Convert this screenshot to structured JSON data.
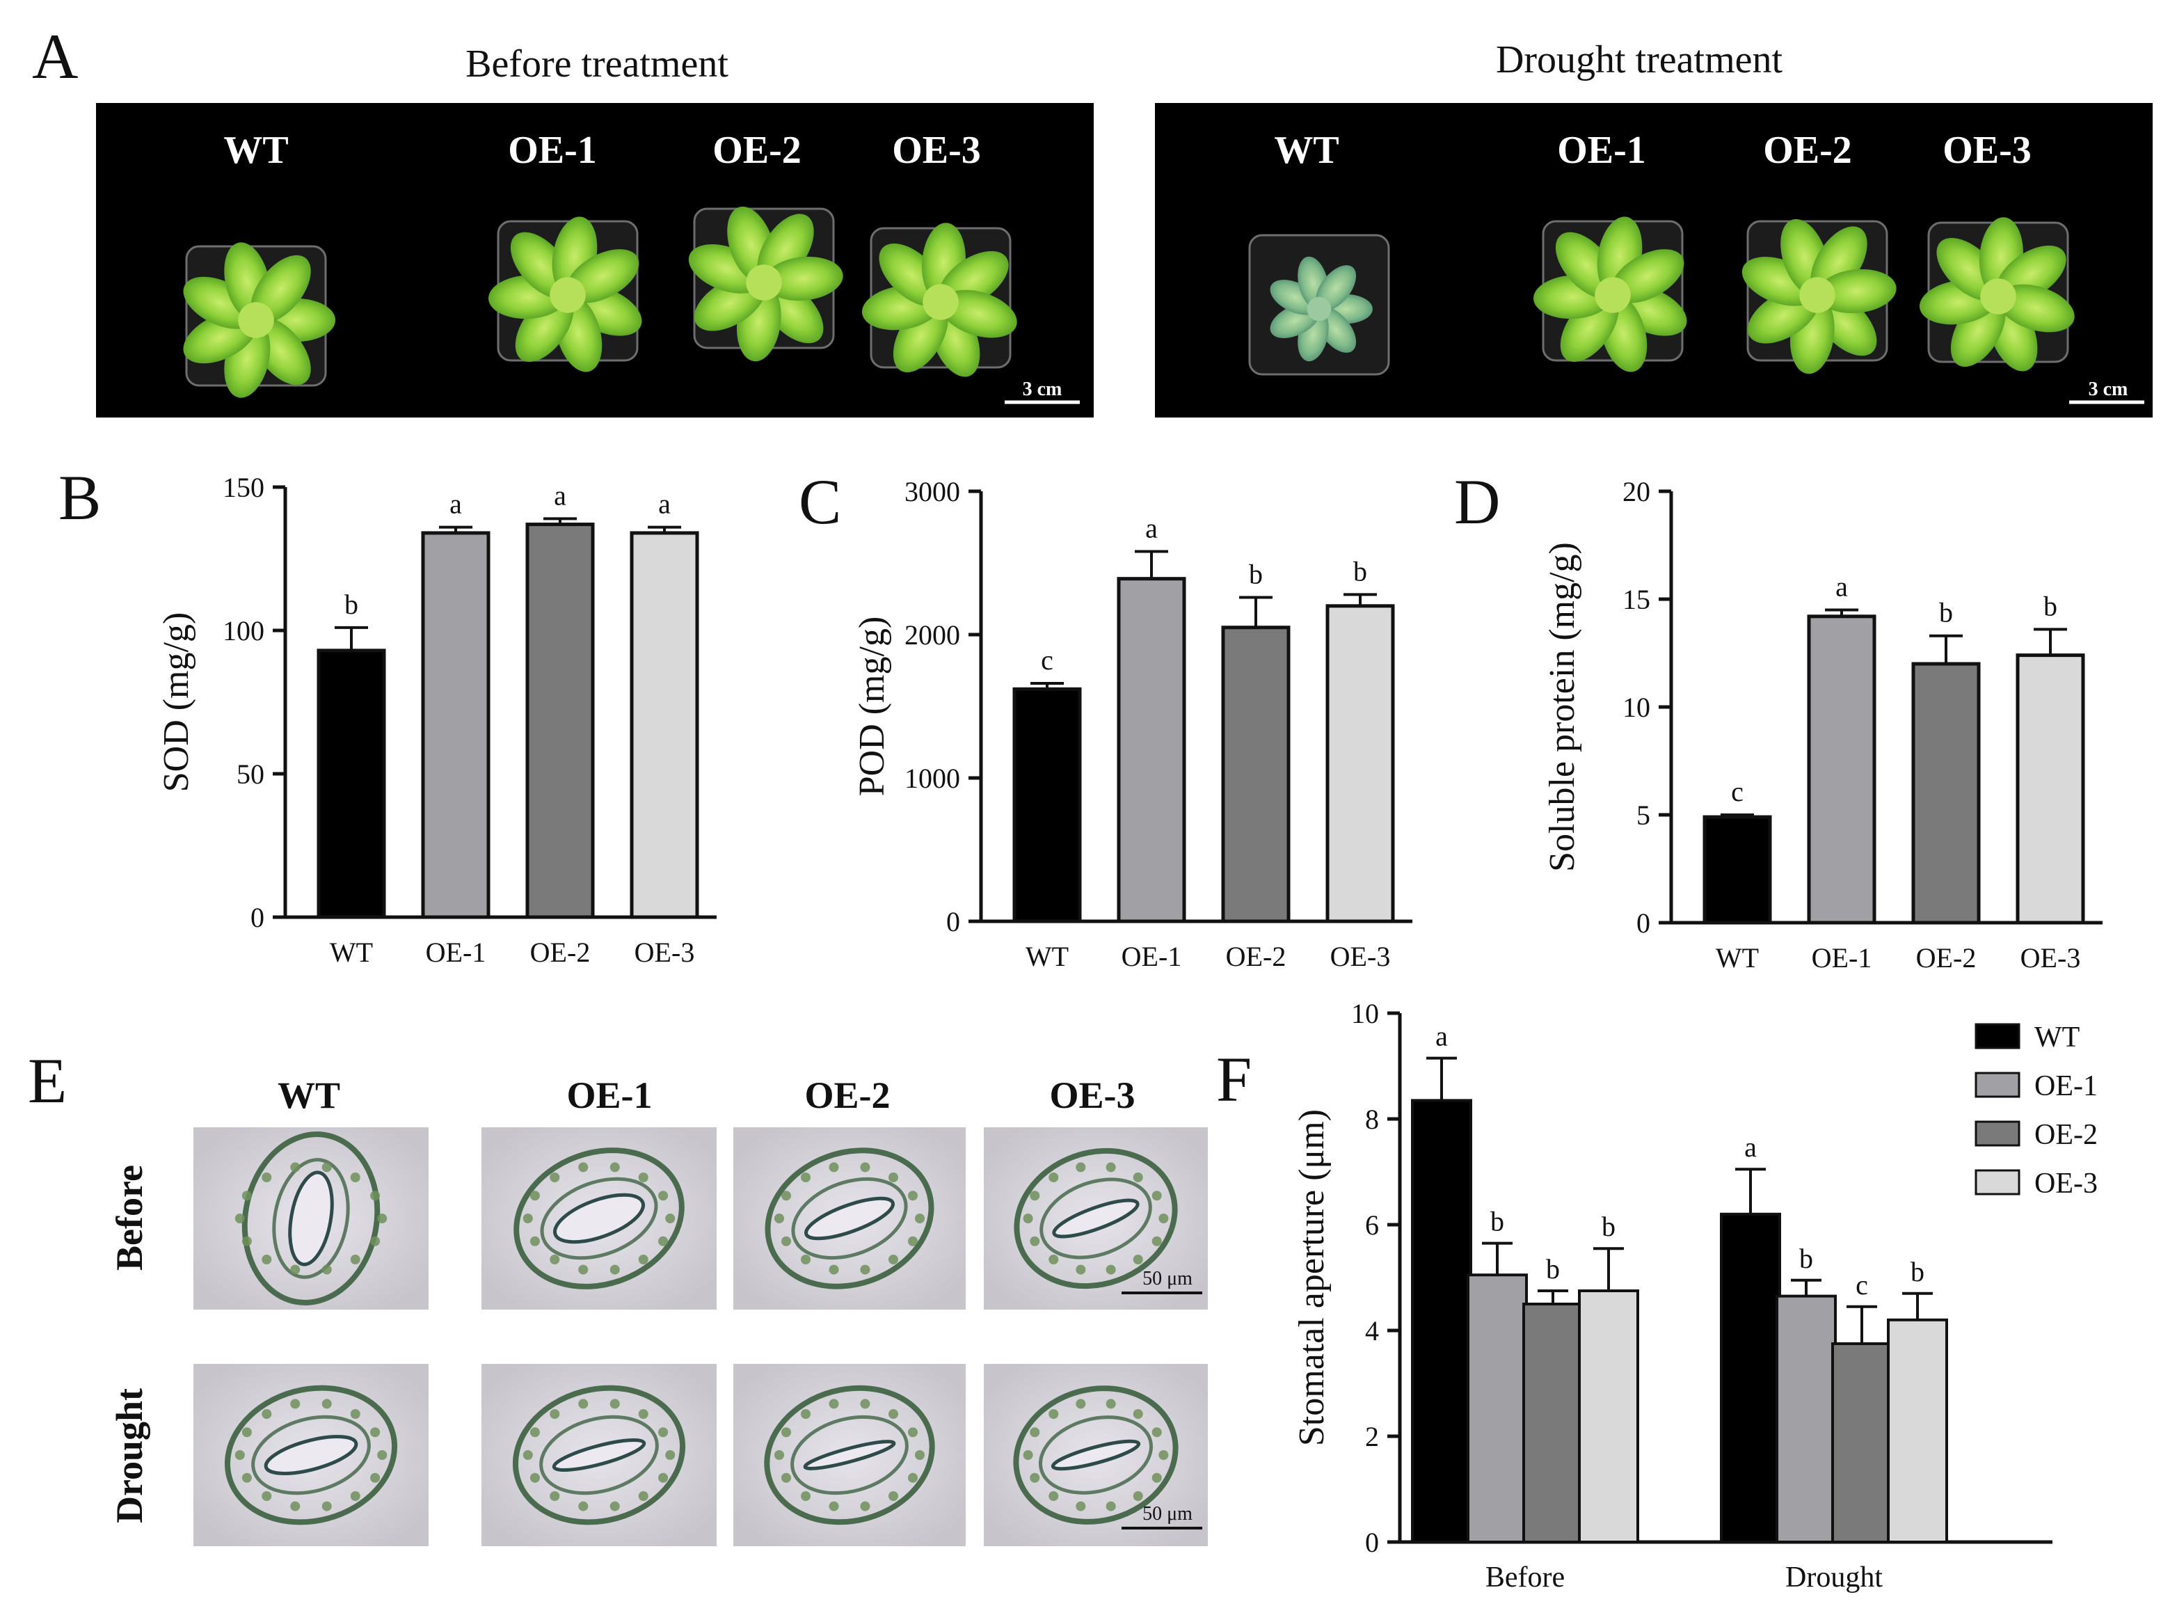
{
  "panels": {
    "A": {
      "letter": "A",
      "before": {
        "title": "Before treatment",
        "labels": [
          "WT",
          "OE-1",
          "OE-2",
          "OE-3"
        ],
        "scale": "3 cm"
      },
      "drought": {
        "title": "Drought treatment",
        "labels": [
          "WT",
          "OE-1",
          "OE-2",
          "OE-3"
        ],
        "scale": "3 cm"
      }
    },
    "E": {
      "letter": "E",
      "columns": [
        "WT",
        "OE-1",
        "OE-2",
        "OE-3"
      ],
      "rows": [
        "Before",
        "Drought"
      ],
      "scale": "50 μm"
    }
  },
  "colors": {
    "WT": "#000000",
    "OE-1": "#a0a0a5",
    "OE-2": "#7a7a7a",
    "OE-3": "#d9d9d9"
  },
  "chart_data": [
    {
      "id": "B",
      "letter": "B",
      "type": "bar",
      "categories": [
        "WT",
        "OE-1",
        "OE-2",
        "OE-3"
      ],
      "values": [
        93,
        134,
        137,
        134
      ],
      "errors": [
        8,
        2,
        2,
        2
      ],
      "letters": [
        "b",
        "a",
        "a",
        "a"
      ],
      "ylabel": "SOD (mg/g)",
      "ylim": [
        0,
        150
      ],
      "yticks": [
        "0",
        "50",
        "100",
        "150"
      ]
    },
    {
      "id": "C",
      "letter": "C",
      "type": "bar",
      "categories": [
        "WT",
        "OE-1",
        "OE-2",
        "OE-3"
      ],
      "values": [
        1620,
        2390,
        2050,
        2200
      ],
      "errors": [
        40,
        190,
        210,
        80
      ],
      "letters": [
        "c",
        "a",
        "b",
        "b"
      ],
      "ylabel": "POD (mg/g)",
      "ylim": [
        0,
        3000
      ],
      "yticks": [
        "0",
        "1000",
        "2000",
        "3000"
      ]
    },
    {
      "id": "D",
      "letter": "D",
      "type": "bar",
      "categories": [
        "WT",
        "OE-1",
        "OE-2",
        "OE-3"
      ],
      "values": [
        4.9,
        14.2,
        12.0,
        12.4
      ],
      "errors": [
        0.1,
        0.3,
        1.3,
        1.2
      ],
      "letters": [
        "c",
        "a",
        "b",
        "b"
      ],
      "ylabel": "Soluble protein (mg/g)",
      "ylim": [
        0,
        20
      ],
      "yticks": [
        "0",
        "5",
        "10",
        "15",
        "20"
      ]
    },
    {
      "id": "F",
      "letter": "F",
      "type": "bar",
      "categories": [
        "Before",
        "Drought"
      ],
      "ylabel": "Stomatal aperture (μm)",
      "ylim": [
        0,
        10
      ],
      "yticks": [
        "0",
        "2",
        "4",
        "6",
        "8",
        "10"
      ],
      "legend": "top-right",
      "series": [
        {
          "name": "WT",
          "values": [
            8.35,
            6.2
          ],
          "errors": [
            0.8,
            0.85
          ],
          "letters": [
            "a",
            "a"
          ]
        },
        {
          "name": "OE-1",
          "values": [
            5.05,
            4.65
          ],
          "errors": [
            0.6,
            0.3
          ],
          "letters": [
            "b",
            "b"
          ]
        },
        {
          "name": "OE-2",
          "values": [
            4.5,
            3.75
          ],
          "errors": [
            0.25,
            0.7
          ],
          "letters": [
            "b",
            "c"
          ]
        },
        {
          "name": "OE-3",
          "values": [
            4.75,
            4.2
          ],
          "errors": [
            0.8,
            0.5
          ],
          "letters": [
            "b",
            "b"
          ]
        }
      ]
    }
  ]
}
